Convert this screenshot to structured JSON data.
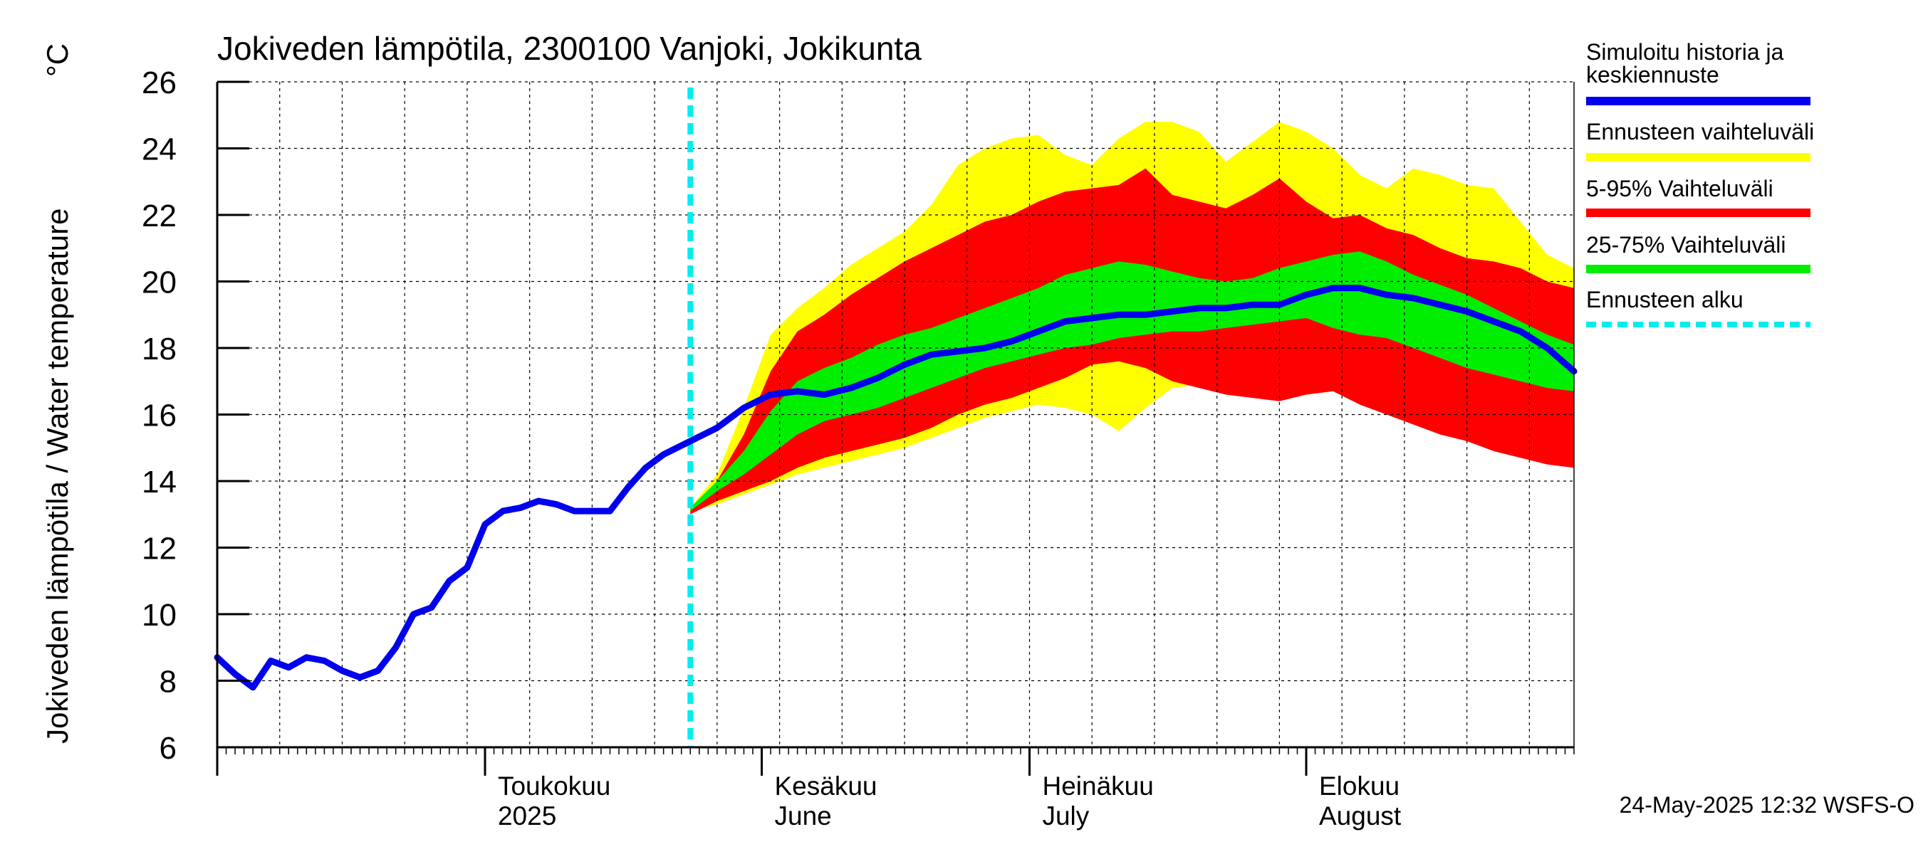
{
  "chart_data": {
    "type": "area",
    "title": "Jokiveden lämpötila, 2300100 Vanjoki, Jokikunta",
    "ylabel": "Jokiveden lämpötila / Water temperature",
    "yunit": "°C",
    "ylim": [
      6,
      26
    ],
    "yticks": [
      6,
      8,
      10,
      12,
      14,
      16,
      18,
      20,
      22,
      24,
      26
    ],
    "xlim": [
      "2025-04-01",
      "2025-08-31"
    ],
    "grid": true,
    "month_labels": [
      {
        "date": "2025-05-01",
        "fi": "Toukokuu",
        "en": "2025"
      },
      {
        "date": "2025-06-01",
        "fi": "Kesäkuu",
        "en": "June"
      },
      {
        "date": "2025-07-01",
        "fi": "Heinäkuu",
        "en": "July"
      },
      {
        "date": "2025-08-01",
        "fi": "Elokuu",
        "en": "August"
      }
    ],
    "forecast_start": "2025-05-24",
    "legend_position": "right",
    "legend": [
      {
        "label": "Simuloitu historia ja keskiennuste",
        "color": "#0000ee",
        "style": "solid"
      },
      {
        "label": "Ennusteen vaihteluväli",
        "color": "#ffff00",
        "style": "solid"
      },
      {
        "label": "5-95% Vaihteluväli",
        "color": "#ff0000",
        "style": "solid"
      },
      {
        "label": "25-75% Vaihteluväli",
        "color": "#00ee00",
        "style": "solid"
      },
      {
        "label": "Ennusteen alku",
        "color": "#00eeee",
        "style": "dashed"
      }
    ],
    "series": [
      {
        "name": "Simuloitu historia ja keskiennuste",
        "color": "#0000ee",
        "x": [
          "2025-04-01",
          "2025-04-03",
          "2025-04-05",
          "2025-04-07",
          "2025-04-09",
          "2025-04-11",
          "2025-04-13",
          "2025-04-15",
          "2025-04-17",
          "2025-04-19",
          "2025-04-21",
          "2025-04-23",
          "2025-04-25",
          "2025-04-27",
          "2025-04-29",
          "2025-05-01",
          "2025-05-03",
          "2025-05-05",
          "2025-05-07",
          "2025-05-09",
          "2025-05-11",
          "2025-05-13",
          "2025-05-15",
          "2025-05-17",
          "2025-05-19",
          "2025-05-21",
          "2025-05-24",
          "2025-05-27",
          "2025-05-30",
          "2025-06-02",
          "2025-06-05",
          "2025-06-08",
          "2025-06-11",
          "2025-06-14",
          "2025-06-17",
          "2025-06-20",
          "2025-06-23",
          "2025-06-26",
          "2025-06-29",
          "2025-07-02",
          "2025-07-05",
          "2025-07-08",
          "2025-07-11",
          "2025-07-14",
          "2025-07-17",
          "2025-07-20",
          "2025-07-23",
          "2025-07-26",
          "2025-07-29",
          "2025-08-01",
          "2025-08-04",
          "2025-08-07",
          "2025-08-10",
          "2025-08-13",
          "2025-08-16",
          "2025-08-19",
          "2025-08-22",
          "2025-08-25",
          "2025-08-28",
          "2025-08-31"
        ],
        "y": [
          8.7,
          8.2,
          7.8,
          8.6,
          8.4,
          8.7,
          8.6,
          8.3,
          8.1,
          8.3,
          9.0,
          10.0,
          10.2,
          11.0,
          11.4,
          12.7,
          13.1,
          13.2,
          13.4,
          13.3,
          13.1,
          13.1,
          13.1,
          13.8,
          14.4,
          14.8,
          15.2,
          15.6,
          16.2,
          16.6,
          16.7,
          16.6,
          16.8,
          17.1,
          17.5,
          17.8,
          17.9,
          18.0,
          18.2,
          18.5,
          18.8,
          18.9,
          19.0,
          19.0,
          19.1,
          19.2,
          19.2,
          19.3,
          19.3,
          19.6,
          19.8,
          19.8,
          19.6,
          19.5,
          19.3,
          19.1,
          18.8,
          18.5,
          18.0,
          17.3
        ]
      },
      {
        "name": "Ennusteen vaihteluväli",
        "color": "#ffff00",
        "x": [
          "2025-05-24",
          "2025-05-27",
          "2025-05-30",
          "2025-06-02",
          "2025-06-05",
          "2025-06-08",
          "2025-06-11",
          "2025-06-14",
          "2025-06-17",
          "2025-06-20",
          "2025-06-23",
          "2025-06-26",
          "2025-06-29",
          "2025-07-02",
          "2025-07-05",
          "2025-07-08",
          "2025-07-11",
          "2025-07-14",
          "2025-07-17",
          "2025-07-20",
          "2025-07-23",
          "2025-07-26",
          "2025-07-29",
          "2025-08-01",
          "2025-08-04",
          "2025-08-07",
          "2025-08-10",
          "2025-08-13",
          "2025-08-16",
          "2025-08-19",
          "2025-08-22",
          "2025-08-25",
          "2025-08-28",
          "2025-08-31"
        ],
        "low": [
          13.1,
          13.3,
          13.6,
          13.9,
          14.2,
          14.4,
          14.6,
          14.8,
          15.0,
          15.3,
          15.6,
          15.9,
          16.1,
          16.3,
          16.2,
          16.0,
          15.5,
          16.2,
          16.8,
          16.9,
          16.8,
          16.6,
          16.5,
          16.6,
          16.7,
          16.5,
          16.3,
          16.0,
          15.8,
          15.5,
          15.2,
          14.9,
          14.7,
          14.5
        ],
        "high": [
          13.2,
          14.2,
          16.2,
          18.4,
          19.2,
          19.8,
          20.5,
          21.0,
          21.5,
          22.3,
          23.5,
          24.0,
          24.3,
          24.4,
          23.8,
          23.5,
          24.3,
          24.8,
          24.8,
          24.5,
          23.6,
          24.2,
          24.8,
          24.5,
          24.0,
          23.2,
          22.8,
          23.4,
          23.2,
          22.9,
          22.8,
          21.8,
          20.8,
          20.4
        ]
      },
      {
        "name": "5-95% Vaihteluväli",
        "color": "#ff0000",
        "x": [
          "2025-05-24",
          "2025-05-27",
          "2025-05-30",
          "2025-06-02",
          "2025-06-05",
          "2025-06-08",
          "2025-06-11",
          "2025-06-14",
          "2025-06-17",
          "2025-06-20",
          "2025-06-23",
          "2025-06-26",
          "2025-06-29",
          "2025-07-02",
          "2025-07-05",
          "2025-07-08",
          "2025-07-11",
          "2025-07-14",
          "2025-07-17",
          "2025-07-20",
          "2025-07-23",
          "2025-07-26",
          "2025-07-29",
          "2025-08-01",
          "2025-08-04",
          "2025-08-07",
          "2025-08-10",
          "2025-08-13",
          "2025-08-16",
          "2025-08-19",
          "2025-08-22",
          "2025-08-25",
          "2025-08-28",
          "2025-08-31"
        ],
        "low": [
          13.0,
          13.4,
          13.7,
          14.0,
          14.4,
          14.7,
          14.9,
          15.1,
          15.3,
          15.6,
          16.0,
          16.3,
          16.5,
          16.8,
          17.1,
          17.5,
          17.6,
          17.4,
          17.0,
          16.8,
          16.6,
          16.5,
          16.4,
          16.6,
          16.7,
          16.3,
          16.0,
          15.7,
          15.4,
          15.2,
          14.9,
          14.7,
          14.5,
          14.4
        ],
        "high": [
          13.1,
          14.0,
          15.4,
          17.3,
          18.5,
          19.0,
          19.6,
          20.1,
          20.6,
          21.0,
          21.4,
          21.8,
          22.0,
          22.4,
          22.7,
          22.8,
          22.9,
          23.4,
          22.6,
          22.4,
          22.2,
          22.6,
          23.1,
          22.4,
          21.9,
          22.0,
          21.6,
          21.4,
          21.0,
          20.7,
          20.6,
          20.4,
          20.0,
          19.8
        ]
      },
      {
        "name": "25-75% Vaihteluväli",
        "color": "#00ee00",
        "x": [
          "2025-05-24",
          "2025-05-27",
          "2025-05-30",
          "2025-06-02",
          "2025-06-05",
          "2025-06-08",
          "2025-06-11",
          "2025-06-14",
          "2025-06-17",
          "2025-06-20",
          "2025-06-23",
          "2025-06-26",
          "2025-06-29",
          "2025-07-02",
          "2025-07-05",
          "2025-07-08",
          "2025-07-11",
          "2025-07-14",
          "2025-07-17",
          "2025-07-20",
          "2025-07-23",
          "2025-07-26",
          "2025-07-29",
          "2025-08-01",
          "2025-08-04",
          "2025-08-07",
          "2025-08-10",
          "2025-08-13",
          "2025-08-16",
          "2025-08-19",
          "2025-08-22",
          "2025-08-25",
          "2025-08-28",
          "2025-08-31"
        ],
        "low": [
          13.1,
          13.7,
          14.2,
          14.8,
          15.4,
          15.8,
          16.0,
          16.2,
          16.5,
          16.8,
          17.1,
          17.4,
          17.6,
          17.8,
          18.0,
          18.1,
          18.3,
          18.4,
          18.5,
          18.5,
          18.6,
          18.7,
          18.8,
          18.9,
          18.6,
          18.4,
          18.3,
          18.0,
          17.7,
          17.4,
          17.2,
          17.0,
          16.8,
          16.7
        ],
        "high": [
          13.2,
          14.0,
          14.9,
          16.1,
          17.0,
          17.4,
          17.7,
          18.1,
          18.4,
          18.6,
          18.9,
          19.2,
          19.5,
          19.8,
          20.2,
          20.4,
          20.6,
          20.5,
          20.3,
          20.1,
          20.0,
          20.1,
          20.4,
          20.6,
          20.8,
          20.9,
          20.6,
          20.2,
          19.9,
          19.6,
          19.2,
          18.8,
          18.4,
          18.1
        ]
      }
    ]
  },
  "footer": "24-May-2025 12:32 WSFS-O"
}
